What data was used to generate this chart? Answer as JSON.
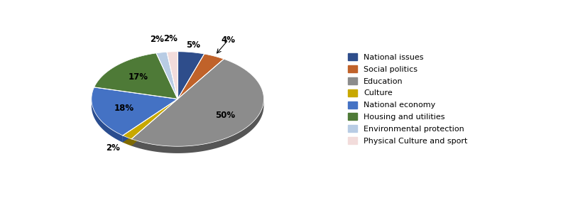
{
  "labels": [
    "National issues",
    "Social politics",
    "Education",
    "Culture",
    "National economy",
    "Housing and utilities",
    "Environmental protection",
    "Physical Culture and sport"
  ],
  "values": [
    5,
    4,
    50,
    2,
    18,
    17,
    2,
    2
  ],
  "colors": [
    "#2E4D8B",
    "#C0622A",
    "#8C8C8C",
    "#C8A800",
    "#4472C4",
    "#4E7A37",
    "#B8CCE4",
    "#F2DCDB"
  ],
  "dark_colors": [
    "#1A2E5A",
    "#7A3B18",
    "#555555",
    "#806B00",
    "#2A4D8F",
    "#2A4A1A",
    "#7A9ABB",
    "#BFA8A5"
  ],
  "startangle": 90,
  "figsize": [
    8.07,
    2.79
  ],
  "dpi": 100,
  "depth": 0.06,
  "legend_labels": [
    "National issues",
    "Social politics",
    "Education",
    "Culture",
    "National economy",
    "Housing and utilities",
    "Environmental protection",
    "Physical Culture and sport"
  ]
}
